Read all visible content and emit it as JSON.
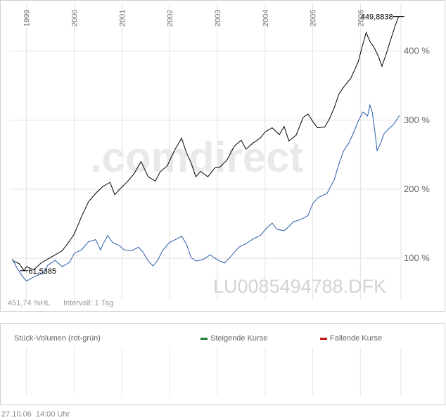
{
  "chart_data": {
    "type": "line",
    "years": [
      "1999",
      "2000",
      "2001",
      "2002",
      "2003",
      "2004",
      "2005",
      "2006"
    ],
    "y_ticks": [
      "400 %",
      "300 %",
      "200 %",
      "100 %"
    ],
    "y_tick_values": [
      400,
      300,
      200,
      100
    ],
    "ylim": [
      40,
      470
    ],
    "xlim": [
      1998.65,
      2006.85
    ],
    "series": [
      {
        "color": "#000000",
        "points": [
          [
            1998.7,
            97
          ],
          [
            1998.85,
            92
          ],
          [
            1998.95,
            82
          ],
          [
            1999.0,
            88
          ],
          [
            1999.15,
            83
          ],
          [
            1999.3,
            93
          ],
          [
            1999.45,
            99
          ],
          [
            1999.6,
            105
          ],
          [
            1999.75,
            111
          ],
          [
            1999.9,
            125
          ],
          [
            2000.0,
            135
          ],
          [
            2000.15,
            160
          ],
          [
            2000.3,
            182
          ],
          [
            2000.45,
            194
          ],
          [
            2000.6,
            204
          ],
          [
            2000.75,
            210
          ],
          [
            2000.85,
            192
          ],
          [
            2000.95,
            200
          ],
          [
            2001.1,
            210
          ],
          [
            2001.25,
            222
          ],
          [
            2001.4,
            240
          ],
          [
            2001.55,
            218
          ],
          [
            2001.7,
            212
          ],
          [
            2001.8,
            225
          ],
          [
            2001.95,
            234
          ],
          [
            2002.1,
            256
          ],
          [
            2002.25,
            274
          ],
          [
            2002.35,
            253
          ],
          [
            2002.45,
            238
          ],
          [
            2002.55,
            218
          ],
          [
            2002.65,
            226
          ],
          [
            2002.8,
            218
          ],
          [
            2002.95,
            231
          ],
          [
            2003.05,
            232
          ],
          [
            2003.2,
            242
          ],
          [
            2003.35,
            262
          ],
          [
            2003.5,
            271
          ],
          [
            2003.6,
            258
          ],
          [
            2003.75,
            267
          ],
          [
            2003.9,
            274
          ],
          [
            2004.0,
            283
          ],
          [
            2004.15,
            289
          ],
          [
            2004.3,
            279
          ],
          [
            2004.4,
            291
          ],
          [
            2004.5,
            270
          ],
          [
            2004.65,
            278
          ],
          [
            2004.8,
            304
          ],
          [
            2004.9,
            309
          ],
          [
            2005.0,
            298
          ],
          [
            2005.1,
            289
          ],
          [
            2005.25,
            290
          ],
          [
            2005.35,
            302
          ],
          [
            2005.45,
            318
          ],
          [
            2005.55,
            338
          ],
          [
            2005.65,
            348
          ],
          [
            2005.8,
            361
          ],
          [
            2005.95,
            384
          ],
          [
            2006.05,
            410
          ],
          [
            2006.12,
            427
          ],
          [
            2006.2,
            414
          ],
          [
            2006.28,
            406
          ],
          [
            2006.38,
            392
          ],
          [
            2006.45,
            378
          ],
          [
            2006.55,
            398
          ],
          [
            2006.65,
            420
          ],
          [
            2006.73,
            437
          ],
          [
            2006.8,
            450
          ]
        ]
      },
      {
        "color": "#2a5caa",
        "points": [
          [
            1998.7,
            99
          ],
          [
            1998.8,
            86
          ],
          [
            1998.9,
            75
          ],
          [
            1999.0,
            67
          ],
          [
            1999.1,
            71
          ],
          [
            1999.25,
            76
          ],
          [
            1999.35,
            78
          ],
          [
            1999.45,
            90
          ],
          [
            1999.6,
            97
          ],
          [
            1999.75,
            88
          ],
          [
            1999.9,
            94
          ],
          [
            2000.0,
            107
          ],
          [
            2000.15,
            112
          ],
          [
            2000.3,
            124
          ],
          [
            2000.45,
            127
          ],
          [
            2000.55,
            112
          ],
          [
            2000.6,
            120
          ],
          [
            2000.7,
            133
          ],
          [
            2000.8,
            123
          ],
          [
            2000.95,
            118
          ],
          [
            2001.05,
            112
          ],
          [
            2001.2,
            111
          ],
          [
            2001.35,
            116
          ],
          [
            2001.45,
            108
          ],
          [
            2001.55,
            96
          ],
          [
            2001.65,
            89
          ],
          [
            2001.75,
            97
          ],
          [
            2001.85,
            111
          ],
          [
            2002.0,
            123
          ],
          [
            2002.15,
            128
          ],
          [
            2002.25,
            132
          ],
          [
            2002.35,
            121
          ],
          [
            2002.45,
            101
          ],
          [
            2002.55,
            96
          ],
          [
            2002.7,
            98
          ],
          [
            2002.85,
            105
          ],
          [
            2002.95,
            100
          ],
          [
            2003.05,
            96
          ],
          [
            2003.15,
            93
          ],
          [
            2003.3,
            104
          ],
          [
            2003.45,
            116
          ],
          [
            2003.6,
            121
          ],
          [
            2003.75,
            128
          ],
          [
            2003.9,
            133
          ],
          [
            2004.05,
            145
          ],
          [
            2004.15,
            151
          ],
          [
            2004.25,
            142
          ],
          [
            2004.4,
            140
          ],
          [
            2004.5,
            146
          ],
          [
            2004.6,
            153
          ],
          [
            2004.7,
            155
          ],
          [
            2004.8,
            158
          ],
          [
            2004.9,
            162
          ],
          [
            2005.0,
            179
          ],
          [
            2005.1,
            187
          ],
          [
            2005.2,
            191
          ],
          [
            2005.3,
            194
          ],
          [
            2005.45,
            214
          ],
          [
            2005.55,
            237
          ],
          [
            2005.65,
            256
          ],
          [
            2005.75,
            266
          ],
          [
            2005.85,
            281
          ],
          [
            2005.95,
            298
          ],
          [
            2006.05,
            312
          ],
          [
            2006.15,
            306
          ],
          [
            2006.2,
            322
          ],
          [
            2006.25,
            311
          ],
          [
            2006.3,
            285
          ],
          [
            2006.35,
            256
          ],
          [
            2006.4,
            263
          ],
          [
            2006.5,
            281
          ],
          [
            2006.6,
            288
          ],
          [
            2006.7,
            294
          ],
          [
            2006.78,
            303
          ],
          [
            2006.82,
            307
          ]
        ]
      }
    ],
    "annotations": {
      "min_label": "61,5385",
      "max_label": "449,8838"
    },
    "grid": true
  },
  "watermark": ".comdirect",
  "symbol": "LU0085494788.DFK",
  "status": {
    "value_label": "451,74 %HL",
    "interval_label": "Intervall: 1 Tag"
  },
  "volume_panel": {
    "title": "Stück-Volumen (rot-grün)",
    "legend_up": "Steigende Kurse",
    "legend_down": "Fallende Kurse",
    "up_color": "#1a7a2e",
    "down_color": "#cc1111"
  },
  "footer": {
    "date": "27.10.06",
    "time": "14:00 Uhr"
  }
}
